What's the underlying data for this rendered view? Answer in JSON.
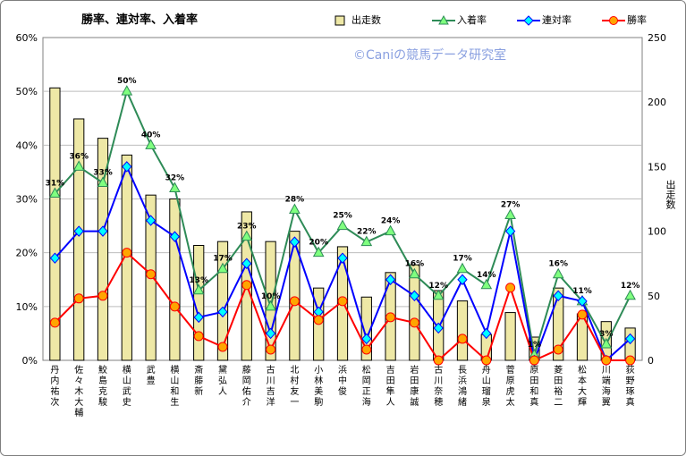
{
  "title": "勝率、連対率、入着率",
  "watermark": "©Caniの競馬データ研究室",
  "legend": [
    {
      "label": "出走数",
      "type": "bar"
    },
    {
      "label": "入着率",
      "type": "line-triangle"
    },
    {
      "label": "連対率",
      "type": "line-diamond"
    },
    {
      "label": "勝率",
      "type": "line-circle"
    }
  ],
  "colors": {
    "bar_fill": "#eee8a6",
    "bar_stroke": "#000000",
    "nyuchaku": "#2e8b57",
    "nyuchaku_marker": "#7fff7f",
    "rentai": "#0000ff",
    "rentai_marker": "#00ffff",
    "win": "#ff0000",
    "win_marker": "#ffa500",
    "plot_bg": "#ffffff",
    "grid": "#bdbdbd",
    "outer_bg": "#ffffff"
  },
  "chart_data": {
    "type": "bar",
    "combo": true,
    "categories": [
      "丹内 祐次",
      "佐々木 大輔",
      "鮫島 克駿",
      "横山 武史",
      "武 豊",
      "横山 和生",
      "斎藤 新",
      "黛 弘人",
      "藤岡 佑介",
      "古川 吉洋",
      "北村 友一",
      "小林 美駒",
      "浜中 俊",
      "松岡 正海",
      "吉田 隼人",
      "岩田 康誠",
      "古川 奈穂",
      "長浜 鴻緒",
      "舟山 瑠泉",
      "菅原 虎太",
      "原田 和真",
      "菱田 裕二",
      "松本 大輝",
      "川端 海翼",
      "荻野 琢真"
    ],
    "series": [
      {
        "name": "出走数",
        "axis": "right",
        "type": "bar",
        "values": [
          211,
          187,
          172,
          159,
          128,
          125,
          89,
          92,
          115,
          92,
          100,
          56,
          88,
          49,
          68,
          74,
          54,
          46,
          20,
          37,
          18,
          56,
          36,
          30,
          25
        ]
      },
      {
        "name": "入着率",
        "axis": "left",
        "type": "line",
        "values": [
          31,
          36,
          33,
          50,
          40,
          32,
          13,
          17,
          23,
          10,
          28,
          20,
          25,
          22,
          24,
          16,
          12,
          17,
          14,
          27,
          1,
          16,
          11,
          3,
          12
        ]
      },
      {
        "name": "連対率",
        "axis": "left",
        "type": "line",
        "values": [
          19,
          24,
          24,
          36,
          26,
          23,
          8,
          9,
          18,
          5,
          22,
          9,
          19,
          4,
          15,
          12,
          6,
          15,
          5,
          24,
          0,
          12,
          11,
          0,
          4
        ]
      },
      {
        "name": "勝率",
        "axis": "left",
        "type": "line",
        "values": [
          7,
          11.5,
          12,
          20,
          16,
          10,
          4.5,
          2.5,
          14,
          2,
          11,
          7.5,
          11,
          2,
          8,
          7,
          0,
          4,
          0,
          13.5,
          0,
          2,
          8.5,
          0,
          0
        ]
      }
    ],
    "data_labels_nyuchaku": [
      "31%",
      "36%",
      "33%",
      "50%",
      "40%",
      "32%",
      "13%",
      "17%",
      "23%",
      "10%",
      "28%",
      "20%",
      "25%",
      "22%",
      "24%",
      "16%",
      "12%",
      "17%",
      "14%",
      "27%",
      "1%",
      "16%",
      "11%",
      "3%",
      "12%"
    ],
    "ylim_left": [
      0,
      60
    ],
    "yticks_left": [
      "0%",
      "10%",
      "20%",
      "30%",
      "40%",
      "50%",
      "60%"
    ],
    "ylim_right": [
      0,
      250
    ],
    "yticks_right": [
      "0",
      "50",
      "100",
      "150",
      "200",
      "250"
    ],
    "ylabel_right": "出走数",
    "grid": true,
    "legend_position": "top-right"
  }
}
